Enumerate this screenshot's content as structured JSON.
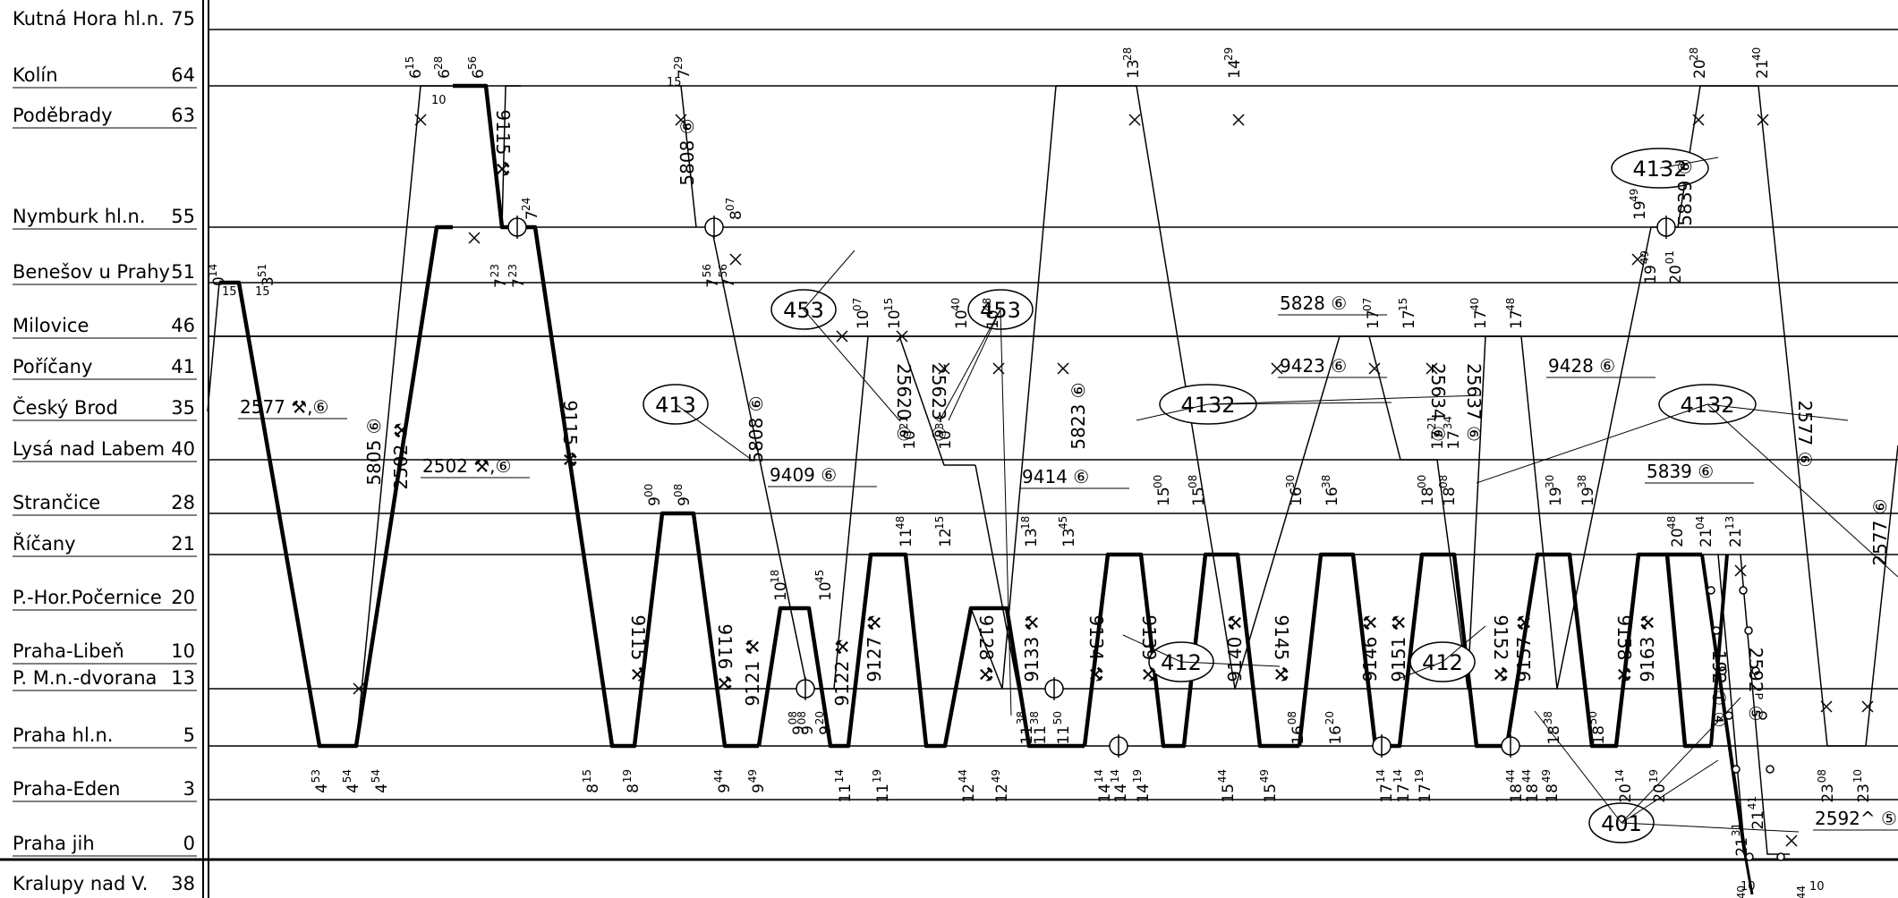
{
  "stations": [
    {
      "name": "Kutná Hora hl.n.",
      "km": "75"
    },
    {
      "name": "Kolín",
      "km": "64"
    },
    {
      "name": "Poděbrady",
      "km": "63"
    },
    {
      "name": "Nymburk hl.n.",
      "km": "55"
    },
    {
      "name": "Benešov u Prahy",
      "km": "51"
    },
    {
      "name": "Milovice",
      "km": "46"
    },
    {
      "name": "Poříčany",
      "km": "41"
    },
    {
      "name": "Český Brod",
      "km": "35"
    },
    {
      "name": "Lysá nad Labem",
      "km": "40"
    },
    {
      "name": "Strančice",
      "km": "28"
    },
    {
      "name": "Říčany",
      "km": "21"
    },
    {
      "name": "P.-Hor.Počernice",
      "km": "20"
    },
    {
      "name": "Praha-Libeň",
      "km": "10"
    },
    {
      "name": "P. M.n.-dvorana",
      "km": "13"
    },
    {
      "name": "Praha hl.n.",
      "km": "5"
    },
    {
      "name": "Praha-Eden",
      "km": "3"
    },
    {
      "name": "Praha jih",
      "km": "0"
    },
    {
      "name": "Kralupy nad V.",
      "km": "38"
    }
  ],
  "circulations": [
    {
      "label": "453"
    },
    {
      "label": "453"
    },
    {
      "label": "413"
    },
    {
      "label": "4132"
    },
    {
      "label": "4132"
    },
    {
      "label": "4132"
    },
    {
      "label": "412"
    },
    {
      "label": "412"
    },
    {
      "label": "401"
    }
  ],
  "train_numbers": [
    {
      "text": "5805 ⑥"
    },
    {
      "text": "2502 ⚒"
    },
    {
      "text": "9115 ⚒"
    },
    {
      "text": "9115 ⚒"
    },
    {
      "text": "5808 ⑥"
    },
    {
      "text": "5808 ⑥"
    },
    {
      "text": "9115 ⚒"
    },
    {
      "text": "9116 ⚒"
    },
    {
      "text": "9121 ⚒"
    },
    {
      "text": "9122 ⚒"
    },
    {
      "text": "25620 ⑥"
    },
    {
      "text": "25623 ⑥"
    },
    {
      "text": "9127 ⚒"
    },
    {
      "text": "9128 ⚒"
    },
    {
      "text": "9133 ⚒"
    },
    {
      "text": "9134 ⚒"
    },
    {
      "text": "5823 ⑥"
    },
    {
      "text": "9139 ⚒"
    },
    {
      "text": "9140 ⚒"
    },
    {
      "text": "9145 ⚒"
    },
    {
      "text": "9146 ⚒"
    },
    {
      "text": "25634 ⑥"
    },
    {
      "text": "25637 ⑥"
    },
    {
      "text": "9151 ⚒"
    },
    {
      "text": "9152 ⚒"
    },
    {
      "text": "9157 ⚒"
    },
    {
      "text": "9158 ⚒"
    },
    {
      "text": "9163 ⚒"
    },
    {
      "text": "5839 ⑥"
    },
    {
      "text": "2577 ⑥"
    },
    {
      "text": "2577 ⑥"
    },
    {
      "text": "2592ᴾ ⑤"
    },
    {
      "text": "192 ① ④"
    }
  ],
  "boxed_notes": [
    {
      "text": "2577 ⚒,⑥"
    },
    {
      "text": "2502 ⚒,⑥"
    },
    {
      "text": "9409 ⑥"
    },
    {
      "text": "9414 ⑥"
    },
    {
      "text": "5828 ⑥"
    },
    {
      "text": "9423 ⑥"
    },
    {
      "text": "9428 ⑥"
    },
    {
      "text": "5839 ⑥"
    },
    {
      "text": "2592^ ⑤"
    }
  ],
  "times": [
    {
      "h": "0",
      "m": "14"
    },
    {
      "h": "3",
      "m": "51"
    },
    {
      "h": "4",
      "m": "53"
    },
    {
      "h": "4",
      "m": "54"
    },
    {
      "h": "4",
      "m": "54"
    },
    {
      "h": "6",
      "m": "15"
    },
    {
      "h": "6",
      "m": "28"
    },
    {
      "h": "6",
      "m": "56"
    },
    {
      "h": "7",
      "m": "23"
    },
    {
      "h": "7",
      "m": "23"
    },
    {
      "h": "7",
      "m": "24"
    },
    {
      "h": "8",
      "m": "15"
    },
    {
      "h": "8",
      "m": "19"
    },
    {
      "h": "7",
      "m": "29"
    },
    {
      "h": "7",
      "m": "56"
    },
    {
      "h": "7",
      "m": "56"
    },
    {
      "h": "8",
      "m": "07"
    },
    {
      "h": "9",
      "m": "00"
    },
    {
      "h": "9",
      "m": "08"
    },
    {
      "h": "9",
      "m": "44"
    },
    {
      "h": "9",
      "m": "49"
    },
    {
      "h": "10",
      "m": "18"
    },
    {
      "h": "10",
      "m": "45"
    },
    {
      "h": "9",
      "m": "08"
    },
    {
      "h": "9",
      "m": "08"
    },
    {
      "h": "9",
      "m": "20"
    },
    {
      "h": "10",
      "m": "07"
    },
    {
      "h": "10",
      "m": "15"
    },
    {
      "h": "10",
      "m": "21"
    },
    {
      "h": "10",
      "m": "34"
    },
    {
      "h": "10",
      "m": "40"
    },
    {
      "h": "10",
      "m": "48"
    },
    {
      "h": "11",
      "m": "14"
    },
    {
      "h": "11",
      "m": "19"
    },
    {
      "h": "11",
      "m": "48"
    },
    {
      "h": "12",
      "m": "15"
    },
    {
      "h": "12",
      "m": "44"
    },
    {
      "h": "12",
      "m": "49"
    },
    {
      "h": "13",
      "m": "18"
    },
    {
      "h": "13",
      "m": "45"
    },
    {
      "h": "11",
      "m": "38"
    },
    {
      "h": "11",
      "m": "38"
    },
    {
      "h": "11",
      "m": "50"
    },
    {
      "h": "13",
      "m": "28"
    },
    {
      "h": "14",
      "m": "29"
    },
    {
      "h": "14",
      "m": "14"
    },
    {
      "h": "14",
      "m": "14"
    },
    {
      "h": "14",
      "m": "19"
    },
    {
      "h": "15",
      "m": "00"
    },
    {
      "h": "15",
      "m": "08"
    },
    {
      "h": "15",
      "m": "44"
    },
    {
      "h": "15",
      "m": "49"
    },
    {
      "h": "16",
      "m": "30"
    },
    {
      "h": "16",
      "m": "38"
    },
    {
      "h": "16",
      "m": "08"
    },
    {
      "h": "16",
      "m": "20"
    },
    {
      "h": "17",
      "m": "07"
    },
    {
      "h": "17",
      "m": "15"
    },
    {
      "h": "17",
      "m": "21"
    },
    {
      "h": "17",
      "m": "34"
    },
    {
      "h": "17",
      "m": "40"
    },
    {
      "h": "17",
      "m": "48"
    },
    {
      "h": "17",
      "m": "14"
    },
    {
      "h": "17",
      "m": "14"
    },
    {
      "h": "17",
      "m": "19"
    },
    {
      "h": "18",
      "m": "00"
    },
    {
      "h": "18",
      "m": "08"
    },
    {
      "h": "18",
      "m": "44"
    },
    {
      "h": "18",
      "m": "44"
    },
    {
      "h": "18",
      "m": "49"
    },
    {
      "h": "19",
      "m": "30"
    },
    {
      "h": "19",
      "m": "38"
    },
    {
      "h": "18",
      "m": "38"
    },
    {
      "h": "18",
      "m": "50"
    },
    {
      "h": "19",
      "m": "49"
    },
    {
      "h": "19",
      "m": "49"
    },
    {
      "h": "20",
      "m": "01"
    },
    {
      "h": "20",
      "m": "28"
    },
    {
      "h": "21",
      "m": "40"
    },
    {
      "h": "20",
      "m": "48"
    },
    {
      "h": "21",
      "m": "04"
    },
    {
      "h": "21",
      "m": "13"
    },
    {
      "h": "20",
      "m": "14"
    },
    {
      "h": "20",
      "m": "19"
    },
    {
      "h": "21",
      "m": "31"
    },
    {
      "h": "21",
      "m": "41"
    },
    {
      "h": "23",
      "m": "08"
    },
    {
      "h": "23",
      "m": "10"
    },
    {
      "h": "21",
      "m": "40"
    },
    {
      "h": "21",
      "m": "44"
    }
  ],
  "minute_notes": [
    {
      "text": "15"
    },
    {
      "text": "15"
    },
    {
      "text": "10"
    },
    {
      "text": "15"
    },
    {
      "text": "10"
    },
    {
      "text": "10"
    }
  ]
}
